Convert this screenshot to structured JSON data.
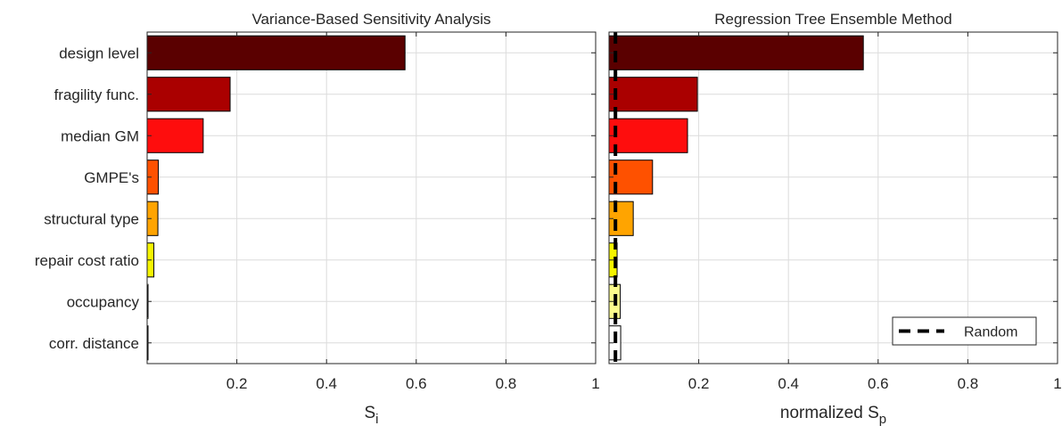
{
  "chart_data": [
    {
      "type": "bar",
      "orientation": "horizontal",
      "title": "Variance-Based Sensitivity Analysis",
      "xlabel": "S",
      "xlabel_sub": "i",
      "xlim": [
        0,
        1
      ],
      "xticks": [
        0.2,
        0.4,
        0.6,
        0.8,
        1
      ],
      "xtick_labels": [
        "0.2",
        "0.4",
        "0.6",
        "0.8",
        "1"
      ],
      "grid": true,
      "categories": [
        "design level",
        "fragility func.",
        "median GM",
        "GMPE's",
        "structural type",
        "repair cost ratio",
        "occupancy",
        "corr. distance"
      ],
      "values": [
        0.575,
        0.185,
        0.125,
        0.025,
        0.024,
        0.015,
        0.002,
        0.001
      ],
      "colors": [
        "#5a0000",
        "#aa0000",
        "#fe0d0d",
        "#fe5100",
        "#ffa400",
        "#f6f500",
        "#fcfc8c",
        "#ffffff"
      ]
    },
    {
      "type": "bar",
      "orientation": "horizontal",
      "title": "Regression Tree Ensemble Method",
      "xlabel": "normalized S",
      "xlabel_sub": "p",
      "xlim": [
        0,
        1
      ],
      "xticks": [
        0.2,
        0.4,
        0.6,
        0.8,
        1
      ],
      "xtick_labels": [
        "0.2",
        "0.4",
        "0.6",
        "0.8",
        "1"
      ],
      "grid": true,
      "categories": [
        "design level",
        "fragility func.",
        "median GM",
        "GMPE's",
        "structural type",
        "repair cost ratio",
        "occupancy",
        "corr. distance"
      ],
      "values": [
        0.567,
        0.197,
        0.175,
        0.097,
        0.054,
        0.018,
        0.025,
        0.026
      ],
      "colors": [
        "#5a0000",
        "#aa0000",
        "#fe0d0d",
        "#fe5100",
        "#ffa400",
        "#f6f500",
        "#fcfc8c",
        "#ffffff"
      ],
      "reference_line": {
        "name": "Random",
        "value": 0.0143,
        "style": "dashed"
      },
      "legend": {
        "location": "bottom-right",
        "entries": [
          "Random"
        ]
      }
    }
  ]
}
